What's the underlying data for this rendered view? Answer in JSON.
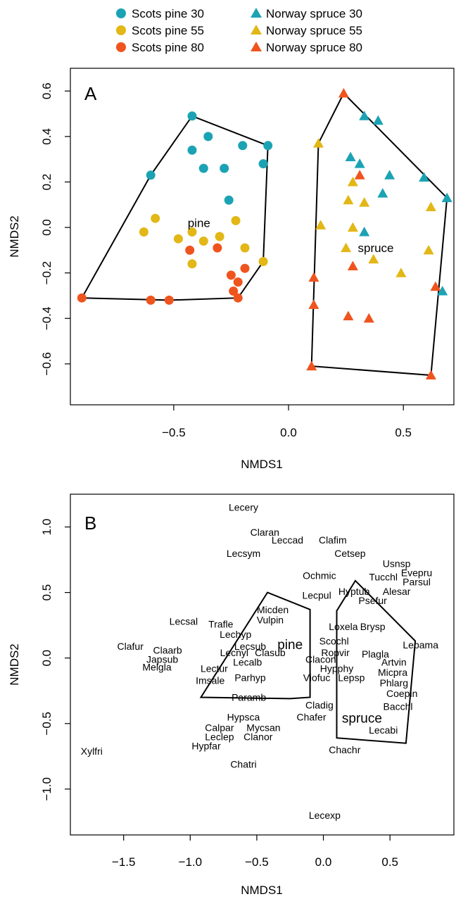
{
  "legend": [
    {
      "label": "Scots pine 30",
      "shape": "circle",
      "color": "#1BA3B4"
    },
    {
      "label": "Scots pine 55",
      "shape": "circle",
      "color": "#E2B716"
    },
    {
      "label": "Scots pine 80",
      "shape": "circle",
      "color": "#F0541E"
    },
    {
      "label": "Norway spruce 30",
      "shape": "triangle",
      "color": "#1BA3B4"
    },
    {
      "label": "Norway spruce 55",
      "shape": "triangle",
      "color": "#E2B716"
    },
    {
      "label": "Norway spruce 80",
      "shape": "triangle",
      "color": "#F0541E"
    }
  ],
  "chart_data": [
    {
      "type": "scatter",
      "panel_label": "A",
      "xlabel": "NMDS1",
      "ylabel": "NMDS2",
      "xlim": [
        -0.95,
        0.72
      ],
      "ylim": [
        -0.78,
        0.7
      ],
      "xticks": [
        -0.5,
        0.0,
        0.5
      ],
      "xtick_labels": [
        "−0.5",
        "0.0",
        "0.5"
      ],
      "yticks": [
        -0.6,
        -0.4,
        -0.2,
        0.0,
        0.2,
        0.4,
        0.6
      ],
      "ytick_labels": [
        "−0.6",
        "−0.4",
        "−0.2",
        "0.0",
        "0.2",
        "0.4",
        "0.6"
      ],
      "series": [
        {
          "name": "Scots pine 30",
          "shape": "circle",
          "color": "#1BA3B4",
          "points": [
            [
              -0.42,
              0.49
            ],
            [
              -0.35,
              0.4
            ],
            [
              -0.42,
              0.34
            ],
            [
              -0.2,
              0.36
            ],
            [
              -0.09,
              0.36
            ],
            [
              -0.6,
              0.23
            ],
            [
              -0.37,
              0.26
            ],
            [
              -0.28,
              0.26
            ],
            [
              -0.11,
              0.28
            ],
            [
              -0.26,
              0.12
            ]
          ]
        },
        {
          "name": "Scots pine 55",
          "shape": "circle",
          "color": "#E2B716",
          "points": [
            [
              -0.58,
              0.04
            ],
            [
              -0.63,
              -0.02
            ],
            [
              -0.48,
              -0.05
            ],
            [
              -0.42,
              -0.02
            ],
            [
              -0.37,
              -0.06
            ],
            [
              -0.3,
              -0.04
            ],
            [
              -0.23,
              0.03
            ],
            [
              -0.19,
              -0.09
            ],
            [
              -0.42,
              -0.16
            ],
            [
              -0.11,
              -0.15
            ]
          ]
        },
        {
          "name": "Scots pine 80",
          "shape": "circle",
          "color": "#F0541E",
          "points": [
            [
              -0.9,
              -0.31
            ],
            [
              -0.6,
              -0.32
            ],
            [
              -0.52,
              -0.32
            ],
            [
              -0.43,
              -0.1
            ],
            [
              -0.31,
              -0.09
            ],
            [
              -0.25,
              -0.21
            ],
            [
              -0.19,
              -0.18
            ],
            [
              -0.24,
              -0.28
            ],
            [
              -0.22,
              -0.24
            ],
            [
              -0.22,
              -0.31
            ]
          ]
        },
        {
          "name": "Norway spruce 30",
          "shape": "triangle",
          "color": "#1BA3B4",
          "points": [
            [
              0.33,
              0.49
            ],
            [
              0.39,
              0.47
            ],
            [
              0.27,
              0.31
            ],
            [
              0.31,
              0.28
            ],
            [
              0.44,
              0.23
            ],
            [
              0.41,
              0.15
            ],
            [
              0.59,
              0.22
            ],
            [
              0.69,
              0.13
            ],
            [
              0.33,
              -0.02
            ],
            [
              0.67,
              -0.28
            ]
          ]
        },
        {
          "name": "Norway spruce 55",
          "shape": "triangle",
          "color": "#E2B716",
          "points": [
            [
              0.13,
              0.37
            ],
            [
              0.26,
              0.12
            ],
            [
              0.33,
              0.11
            ],
            [
              0.28,
              0.2
            ],
            [
              0.62,
              0.09
            ],
            [
              0.14,
              0.01
            ],
            [
              0.28,
              0.0
            ],
            [
              0.25,
              -0.09
            ],
            [
              0.37,
              -0.14
            ],
            [
              0.49,
              -0.2
            ],
            [
              0.61,
              -0.1
            ]
          ]
        },
        {
          "name": "Norway spruce 80",
          "shape": "triangle",
          "color": "#F0541E",
          "points": [
            [
              0.24,
              0.59
            ],
            [
              0.31,
              0.23
            ],
            [
              0.28,
              -0.17
            ],
            [
              0.11,
              -0.22
            ],
            [
              0.11,
              -0.34
            ],
            [
              0.26,
              -0.39
            ],
            [
              0.35,
              -0.4
            ],
            [
              0.64,
              -0.26
            ],
            [
              0.1,
              -0.61
            ],
            [
              0.62,
              -0.65
            ]
          ]
        }
      ],
      "annotations": [
        {
          "text": "pine",
          "x": -0.39,
          "y": 0.02
        },
        {
          "text": "spruce",
          "x": 0.38,
          "y": -0.09
        }
      ],
      "hulls": [
        {
          "name": "pine",
          "points": [
            [
              -0.9,
              -0.31
            ],
            [
              -0.6,
              0.23
            ],
            [
              -0.42,
              0.49
            ],
            [
              -0.09,
              0.36
            ],
            [
              -0.11,
              -0.15
            ],
            [
              -0.22,
              -0.31
            ],
            [
              -0.52,
              -0.32
            ]
          ]
        },
        {
          "name": "spruce",
          "points": [
            [
              0.24,
              0.59
            ],
            [
              0.69,
              0.13
            ],
            [
              0.62,
              -0.65
            ],
            [
              0.1,
              -0.61
            ],
            [
              0.13,
              0.37
            ]
          ]
        }
      ]
    },
    {
      "type": "scatter",
      "panel_label": "B",
      "xlabel": "NMDS1",
      "ylabel": "NMDS2",
      "xlim": [
        -1.9,
        0.98
      ],
      "ylim": [
        -1.35,
        1.25
      ],
      "xticks": [
        -1.5,
        -1.0,
        -0.5,
        0.0,
        0.5
      ],
      "xtick_labels": [
        "−1.5",
        "−1.0",
        "−0.5",
        "0.0",
        "0.5"
      ],
      "yticks": [
        -1.0,
        -0.5,
        0.0,
        0.5,
        1.0
      ],
      "ytick_labels": [
        "−1.0",
        "−0.5",
        "0.0",
        "0.5",
        "1.0"
      ],
      "species": [
        {
          "text": "Lecery",
          "x": -0.6,
          "y": 1.15
        },
        {
          "text": "Claran",
          "x": -0.44,
          "y": 0.96
        },
        {
          "text": "Leccad",
          "x": -0.27,
          "y": 0.9
        },
        {
          "text": "Lecsym",
          "x": -0.6,
          "y": 0.8
        },
        {
          "text": "Clafim",
          "x": 0.07,
          "y": 0.9
        },
        {
          "text": "Cetsep",
          "x": 0.2,
          "y": 0.8
        },
        {
          "text": "Usnsp",
          "x": 0.55,
          "y": 0.72
        },
        {
          "text": "Evepru",
          "x": 0.7,
          "y": 0.65
        },
        {
          "text": "Tucchl",
          "x": 0.45,
          "y": 0.62
        },
        {
          "text": "Parsul",
          "x": 0.7,
          "y": 0.58
        },
        {
          "text": "Ochmic",
          "x": -0.03,
          "y": 0.63
        },
        {
          "text": "Hyptub",
          "x": 0.23,
          "y": 0.51
        },
        {
          "text": "Alesar",
          "x": 0.55,
          "y": 0.51
        },
        {
          "text": "Lecpul",
          "x": -0.05,
          "y": 0.48
        },
        {
          "text": "Psefur",
          "x": 0.37,
          "y": 0.44
        },
        {
          "text": "Micden",
          "x": -0.38,
          "y": 0.37
        },
        {
          "text": "Vulpin",
          "x": -0.4,
          "y": 0.29
        },
        {
          "text": "Lecsal",
          "x": -1.05,
          "y": 0.28
        },
        {
          "text": "Trafle",
          "x": -0.77,
          "y": 0.26
        },
        {
          "text": "Loxela",
          "x": 0.15,
          "y": 0.24
        },
        {
          "text": "Brysp",
          "x": 0.37,
          "y": 0.24
        },
        {
          "text": "Lechyp",
          "x": -0.66,
          "y": 0.18
        },
        {
          "text": "Scochl",
          "x": 0.08,
          "y": 0.13
        },
        {
          "text": "Lecsub",
          "x": -0.55,
          "y": 0.09
        },
        {
          "text": "Clafur",
          "x": -1.45,
          "y": 0.09
        },
        {
          "text": "Claarb",
          "x": -1.17,
          "y": 0.06
        },
        {
          "text": "Lepama",
          "x": 0.73,
          "y": 0.1
        },
        {
          "text": "Lecnyl",
          "x": -0.67,
          "y": 0.04
        },
        {
          "text": "Clasub",
          "x": -0.4,
          "y": 0.04
        },
        {
          "text": "Ropvir",
          "x": 0.09,
          "y": 0.04
        },
        {
          "text": "Plagla",
          "x": 0.39,
          "y": 0.03
        },
        {
          "text": "Japsub",
          "x": -1.21,
          "y": -0.01
        },
        {
          "text": "Clacon",
          "x": -0.02,
          "y": -0.01
        },
        {
          "text": "Lecalb",
          "x": -0.57,
          "y": -0.03
        },
        {
          "text": "Artvin",
          "x": 0.53,
          "y": -0.03
        },
        {
          "text": "Melgla",
          "x": -1.25,
          "y": -0.07
        },
        {
          "text": "Lectur",
          "x": -0.82,
          "y": -0.08
        },
        {
          "text": "Hypphy",
          "x": 0.1,
          "y": -0.08
        },
        {
          "text": "Micpra",
          "x": 0.52,
          "y": -0.11
        },
        {
          "text": "Parhyp",
          "x": -0.55,
          "y": -0.15
        },
        {
          "text": "Viofuc",
          "x": -0.05,
          "y": -0.15
        },
        {
          "text": "Lepsp",
          "x": 0.21,
          "y": -0.15
        },
        {
          "text": "Imsale",
          "x": -0.85,
          "y": -0.17
        },
        {
          "text": "Phlarg",
          "x": 0.53,
          "y": -0.19
        },
        {
          "text": "Coepin",
          "x": 0.59,
          "y": -0.27
        },
        {
          "text": "Paramb",
          "x": -0.56,
          "y": -0.3
        },
        {
          "text": "Cladig",
          "x": -0.03,
          "y": -0.36
        },
        {
          "text": "Bacchl",
          "x": 0.56,
          "y": -0.37
        },
        {
          "text": "Hypsca",
          "x": -0.6,
          "y": -0.45
        },
        {
          "text": "Chafer",
          "x": -0.09,
          "y": -0.45
        },
        {
          "text": "Calpar",
          "x": -0.78,
          "y": -0.53
        },
        {
          "text": "Mycsan",
          "x": -0.45,
          "y": -0.53
        },
        {
          "text": "Leclep",
          "x": -0.78,
          "y": -0.6
        },
        {
          "text": "Clanor",
          "x": -0.49,
          "y": -0.6
        },
        {
          "text": "Lecabi",
          "x": 0.45,
          "y": -0.55
        },
        {
          "text": "Hypfar",
          "x": -0.88,
          "y": -0.67
        },
        {
          "text": "Chachr",
          "x": 0.16,
          "y": -0.7
        },
        {
          "text": "Xylfri",
          "x": -1.74,
          "y": -0.71
        },
        {
          "text": "Chatri",
          "x": -0.6,
          "y": -0.81
        },
        {
          "text": "Lecexp",
          "x": 0.01,
          "y": -1.2
        }
      ],
      "annotations": [
        {
          "text": "pine",
          "x": -0.25,
          "y": 0.1
        },
        {
          "text": "spruce",
          "x": 0.29,
          "y": -0.46
        }
      ],
      "hulls": [
        {
          "name": "pine",
          "points": [
            [
              -0.42,
              0.5
            ],
            [
              -0.1,
              0.37
            ],
            [
              -0.1,
              -0.3
            ],
            [
              -0.25,
              -0.31
            ],
            [
              -0.92,
              -0.3
            ]
          ]
        },
        {
          "name": "spruce",
          "points": [
            [
              0.24,
              0.59
            ],
            [
              0.69,
              0.13
            ],
            [
              0.62,
              -0.65
            ],
            [
              0.1,
              -0.61
            ],
            [
              0.1,
              0.36
            ]
          ]
        }
      ]
    }
  ]
}
